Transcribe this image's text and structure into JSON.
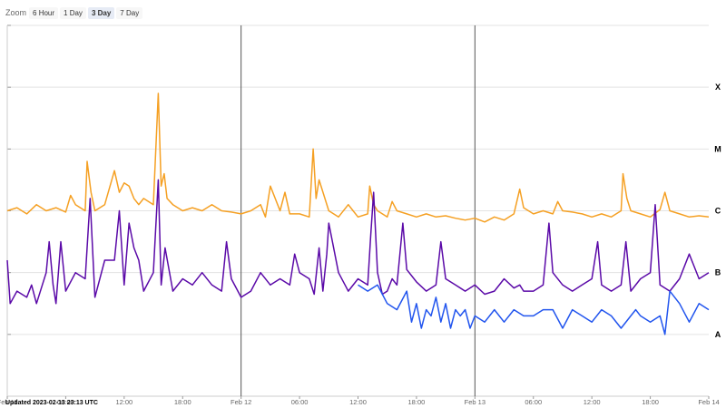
{
  "zoom": {
    "label": "Zoom",
    "options": [
      "6 Hour",
      "1 Day",
      "3 Day",
      "7 Day"
    ],
    "selected": "3 Day"
  },
  "updated": "Updated 2023-02-13 23:13 UTC",
  "colors": {
    "orange": "#f5a023",
    "purple": "#5b0aa8",
    "blue": "#2255ee",
    "grid": "#e3e3e3",
    "divider": "#555555"
  },
  "chart_data": {
    "type": "line",
    "y_scale": "log",
    "xlim": [
      0,
      72
    ],
    "ylim": [
      -9.0,
      -3.0
    ],
    "x_tick_labels": [
      {
        "x": 0,
        "label": "Feb 11"
      },
      {
        "x": 6,
        "label": "06:00"
      },
      {
        "x": 12,
        "label": "12:00"
      },
      {
        "x": 18,
        "label": "18:00"
      },
      {
        "x": 24,
        "label": "Feb 12"
      },
      {
        "x": 30,
        "label": "06:00"
      },
      {
        "x": 36,
        "label": "12:00"
      },
      {
        "x": 42,
        "label": "18:00"
      },
      {
        "x": 48,
        "label": "Feb 13"
      },
      {
        "x": 54,
        "label": "06:00"
      },
      {
        "x": 60,
        "label": "12:00"
      },
      {
        "x": 66,
        "label": "18:00"
      },
      {
        "x": 72,
        "label": "Feb 14"
      }
    ],
    "day_dividers": [
      24,
      48
    ],
    "class_labels": [
      {
        "label": "X",
        "y": -4.0
      },
      {
        "label": "M",
        "y": -5.0
      },
      {
        "label": "C",
        "y": -6.0
      },
      {
        "label": "B",
        "y": -7.0
      },
      {
        "label": "A",
        "y": -8.0
      }
    ],
    "series": [
      {
        "color": "orange",
        "x": [
          0,
          1,
          2,
          3,
          4,
          5,
          6,
          6.5,
          7,
          8,
          8.2,
          8.6,
          9,
          10,
          11,
          11.5,
          12,
          12.5,
          13,
          13.5,
          14,
          15,
          15.5,
          15.8,
          16.1,
          16.4,
          17,
          18,
          19,
          20,
          21,
          22,
          23,
          24,
          25,
          26,
          26.5,
          27,
          28,
          28.5,
          29,
          30,
          31,
          31.4,
          31.7,
          32,
          33,
          34,
          35,
          35.5,
          36,
          37,
          37.2,
          37.6,
          38,
          39,
          39.5,
          40,
          41,
          42,
          43,
          44,
          45,
          46,
          47,
          48,
          49,
          50,
          51,
          52,
          52.6,
          53,
          54,
          55,
          56,
          56.5,
          57,
          58,
          59,
          60,
          61,
          62,
          63,
          63.2,
          63.6,
          64,
          65,
          66,
          67,
          67.5,
          68,
          69,
          70,
          71,
          72
        ],
        "y": [
          -6.0,
          -5.95,
          -6.05,
          -5.9,
          -6.0,
          -5.95,
          -6.02,
          -5.75,
          -5.9,
          -6.0,
          -5.2,
          -5.7,
          -6.0,
          -5.9,
          -5.35,
          -5.7,
          -5.55,
          -5.6,
          -5.8,
          -5.9,
          -5.8,
          -5.9,
          -4.1,
          -5.6,
          -5.4,
          -5.8,
          -5.9,
          -6.0,
          -5.95,
          -6.0,
          -5.9,
          -6.0,
          -6.02,
          -6.05,
          -6.0,
          -5.9,
          -6.1,
          -5.6,
          -6.0,
          -5.7,
          -6.05,
          -6.05,
          -6.1,
          -5.0,
          -5.8,
          -5.5,
          -6.0,
          -6.1,
          -5.9,
          -6.0,
          -6.1,
          -6.05,
          -5.6,
          -5.9,
          -6.0,
          -6.1,
          -5.85,
          -6.0,
          -6.05,
          -6.1,
          -6.05,
          -6.1,
          -6.08,
          -6.12,
          -6.15,
          -6.12,
          -6.18,
          -6.1,
          -6.15,
          -6.05,
          -5.65,
          -5.95,
          -6.05,
          -6.0,
          -6.05,
          -5.85,
          -6.0,
          -6.02,
          -6.05,
          -6.1,
          -6.05,
          -6.1,
          -6.0,
          -5.4,
          -5.8,
          -6.0,
          -6.05,
          -6.1,
          -5.98,
          -5.7,
          -6.0,
          -6.05,
          -6.1,
          -6.08,
          -6.1
        ]
      },
      {
        "color": "purple",
        "x": [
          0,
          0.3,
          1,
          2,
          2.5,
          3,
          4,
          4.3,
          4.7,
          5,
          5.5,
          6,
          7,
          8,
          8.5,
          9,
          10,
          11,
          11.5,
          12,
          12.5,
          13,
          13.5,
          14,
          15,
          15.5,
          15.8,
          16.2,
          17,
          18,
          19,
          20,
          21,
          22,
          22.5,
          23,
          24,
          25,
          26,
          27,
          28,
          29,
          29.5,
          30,
          31,
          31.5,
          32,
          32.4,
          32.8,
          33,
          34,
          35,
          36,
          37,
          37.3,
          37.6,
          38,
          38.5,
          39,
          39.5,
          40,
          40.6,
          41,
          42,
          43,
          44,
          44.5,
          45,
          46,
          47,
          48,
          49,
          50,
          51,
          52,
          52.6,
          53,
          54,
          55,
          55.6,
          56,
          57,
          58,
          59,
          60,
          60.6,
          61,
          62,
          63,
          63.5,
          64,
          65,
          66,
          66.5,
          67,
          68,
          69,
          70,
          71,
          72
        ],
        "y": [
          -6.8,
          -7.5,
          -7.3,
          -7.4,
          -7.2,
          -7.5,
          -7.0,
          -6.5,
          -7.2,
          -7.5,
          -6.5,
          -7.3,
          -7.0,
          -7.1,
          -5.8,
          -7.4,
          -6.8,
          -6.8,
          -6.0,
          -7.2,
          -6.2,
          -6.6,
          -6.8,
          -7.3,
          -7.0,
          -5.5,
          -7.2,
          -6.6,
          -7.3,
          -7.1,
          -7.2,
          -7.0,
          -7.2,
          -7.3,
          -6.5,
          -7.1,
          -7.4,
          -7.3,
          -7.0,
          -7.2,
          -7.1,
          -7.2,
          -6.7,
          -7.0,
          -7.1,
          -7.35,
          -6.6,
          -7.3,
          -6.7,
          -6.2,
          -7.0,
          -7.3,
          -7.1,
          -7.2,
          -6.4,
          -5.7,
          -7.0,
          -7.35,
          -7.3,
          -7.1,
          -7.2,
          -6.2,
          -6.95,
          -7.15,
          -7.3,
          -7.2,
          -6.5,
          -7.1,
          -7.2,
          -7.3,
          -7.2,
          -7.35,
          -7.3,
          -7.1,
          -7.25,
          -7.2,
          -7.3,
          -7.3,
          -7.2,
          -6.2,
          -7.0,
          -7.2,
          -7.3,
          -7.2,
          -7.1,
          -6.5,
          -7.2,
          -7.3,
          -7.2,
          -6.5,
          -7.3,
          -7.1,
          -7.0,
          -5.9,
          -7.2,
          -7.3,
          -7.1,
          -6.7,
          -7.1,
          -7.0
        ]
      },
      {
        "color": "blue",
        "x": [
          36,
          37,
          38,
          39,
          40,
          41,
          41.5,
          42,
          42.5,
          43,
          43.5,
          44,
          44.5,
          45,
          45.5,
          46,
          46.5,
          47,
          47.5,
          48,
          49,
          50,
          51,
          52,
          53,
          54,
          55,
          56,
          57,
          58,
          59,
          60,
          61,
          62,
          63,
          64,
          64.5,
          65,
          66,
          67,
          67.5,
          68,
          69,
          70,
          71,
          72
        ],
        "y": [
          -7.2,
          -7.3,
          -7.2,
          -7.5,
          -7.6,
          -7.3,
          -7.8,
          -7.5,
          -7.9,
          -7.6,
          -7.7,
          -7.4,
          -7.8,
          -7.5,
          -7.9,
          -7.6,
          -7.7,
          -7.6,
          -7.9,
          -7.7,
          -7.8,
          -7.6,
          -7.8,
          -7.6,
          -7.7,
          -7.7,
          -7.6,
          -7.6,
          -7.9,
          -7.6,
          -7.7,
          -7.8,
          -7.6,
          -7.7,
          -7.9,
          -7.7,
          -7.6,
          -7.7,
          -7.8,
          -7.7,
          -8.0,
          -7.3,
          -7.5,
          -7.8,
          -7.5,
          -7.6
        ]
      }
    ]
  }
}
